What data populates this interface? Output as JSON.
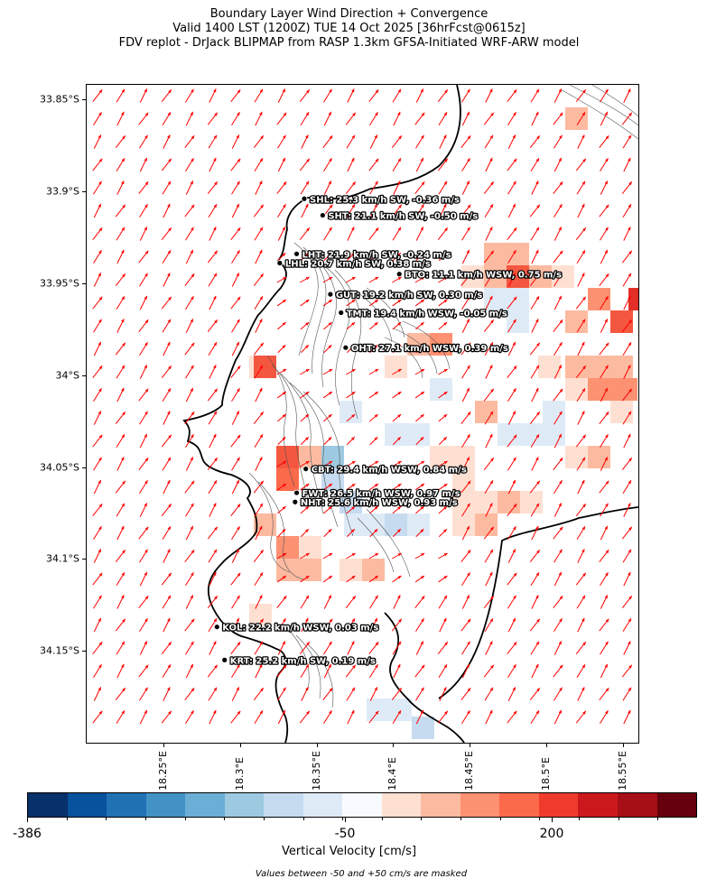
{
  "title": {
    "line1": "Boundary Layer Wind Direction + Convergence",
    "line2": "Valid 1400 LST (1200Z) TUE 14 Oct 2025 [36hrFcst@0615z]",
    "line3": "FDV replot - DrJack BLIPMAP from RASP 1.3km GFSA-Initiated WRF-ARW model"
  },
  "map": {
    "lat_ticks": [
      "33.85°S",
      "33.9°S",
      "33.95°S",
      "34°S",
      "34.05°S",
      "34.1°S",
      "34.15°S"
    ],
    "lon_ticks": [
      "18.25°E",
      "18.3°E",
      "18.35°E",
      "18.4°E",
      "18.45°E",
      "18.5°E",
      "18.55°E"
    ],
    "lat_values": [
      -33.85,
      -33.9,
      -33.95,
      -34.0,
      -34.05,
      -34.1,
      -34.15
    ],
    "lon_values": [
      18.25,
      18.3,
      18.35,
      18.4,
      18.45,
      18.5,
      18.55
    ],
    "extent": {
      "lon_min": 18.2,
      "lon_max": 18.56,
      "lat_max": -33.842,
      "lat_min": -34.2
    },
    "arrow_color": "#ff0000",
    "coast_color": "#000000",
    "contour_color": "#555555",
    "stations": [
      {
        "id": "SHL",
        "label": "SHL: 25.3 km/h SW, -0.36 m/s",
        "lon": 18.342,
        "lat": -33.904
      },
      {
        "id": "SHT",
        "label": "SHT: 21.1 km/h SW, -0.50 m/s",
        "lon": 18.354,
        "lat": -33.913
      },
      {
        "id": "LHT",
        "label": "LHT: 21.9 km/h SW, -0.24 m/s",
        "lon": 18.337,
        "lat": -33.934
      },
      {
        "id": "LHL",
        "label": "LHL: 20.7 km/h SW, 0.38 m/s",
        "lon": 18.326,
        "lat": -33.939
      },
      {
        "id": "BTO",
        "label": "BTO: 11.1 km/h WSW, 0.75 m/s",
        "lon": 18.404,
        "lat": -33.945
      },
      {
        "id": "GUT",
        "label": "GUT: 19.2 km/h SW, 0.30 m/s",
        "lon": 18.359,
        "lat": -33.956
      },
      {
        "id": "TMT",
        "label": "TMT: 19.4 km/h WSW, -0.05 m/s",
        "lon": 18.366,
        "lat": -33.966
      },
      {
        "id": "OHT",
        "label": "OHT: 27.1 km/h WSW, 0.39 m/s",
        "lon": 18.369,
        "lat": -33.985
      },
      {
        "id": "CBT",
        "label": "CBT: 29.4 km/h WSW, 0.84 m/s",
        "lon": 18.343,
        "lat": -34.051
      },
      {
        "id": "FWT",
        "label": "FWT: 26.5 km/h WSW, 0.97 m/s",
        "lon": 18.337,
        "lat": -34.064
      },
      {
        "id": "NHT",
        "label": "NHT: 25.6 km/h WSW, 0.93 m/s",
        "lon": 18.336,
        "lat": -34.069
      },
      {
        "id": "KOL",
        "label": "KOL: 22.2 km/h WSW, 0.03 m/s",
        "lon": 18.285,
        "lat": -34.137
      },
      {
        "id": "KRT",
        "label": "KRT: 25.2 km/h SW, 0.19 m/s",
        "lon": 18.29,
        "lat": -34.155
      }
    ]
  },
  "colorbar": {
    "label": "Vertical Velocity [cm/s]",
    "ticks": [
      "-386",
      "-50",
      "200"
    ],
    "colors": [
      "#08306b",
      "#08519c",
      "#2171b5",
      "#4292c6",
      "#6baed6",
      "#9ecae1",
      "#c6dbef",
      "#deebf7",
      "#f7fbff",
      "#fee0d2",
      "#fcbba1",
      "#fc9272",
      "#fb6a4a",
      "#ef3b2c",
      "#cb181d",
      "#a50f15",
      "#67000d"
    ]
  },
  "note": "Values between -50 and +50 cm/s are masked"
}
